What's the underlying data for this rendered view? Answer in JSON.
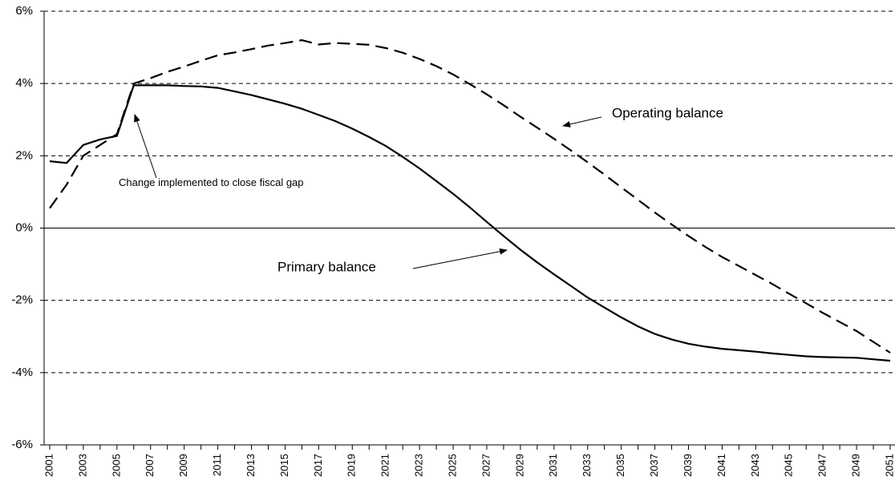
{
  "chart_data": {
    "type": "line",
    "categories": [
      "2001",
      null,
      "2003",
      null,
      "2005",
      null,
      "2007",
      null,
      "2009",
      null,
      "2011",
      null,
      "2013",
      null,
      "2015",
      null,
      "2017",
      null,
      "2019",
      null,
      "2021",
      null,
      "2023",
      null,
      "2025",
      null,
      "2027",
      null,
      "2029",
      null,
      "2031",
      null,
      "2033",
      null,
      "2035",
      null,
      "2037",
      null,
      "2039",
      null,
      "2041",
      null,
      "2043",
      null,
      "2045",
      null,
      "2047",
      null,
      "2049",
      null,
      "2051"
    ],
    "series": [
      {
        "name": "Primary balance",
        "color": "#000000",
        "style": "solid",
        "values": [
          1.85,
          1.8,
          2.3,
          2.45,
          2.55,
          3.95,
          3.95,
          3.95,
          3.93,
          3.92,
          3.88,
          3.78,
          3.68,
          3.56,
          3.44,
          3.3,
          3.13,
          2.96,
          2.75,
          2.52,
          2.27,
          1.97,
          1.65,
          1.3,
          0.95,
          0.57,
          0.17,
          -0.22,
          -0.6,
          -0.95,
          -1.28,
          -1.6,
          -1.92,
          -2.2,
          -2.47,
          -2.72,
          -2.93,
          -3.08,
          -3.2,
          -3.28,
          -3.34,
          -3.38,
          -3.42,
          -3.47,
          -3.51,
          -3.55,
          -3.57,
          -3.58,
          -3.59,
          -3.63,
          -3.67
        ]
      },
      {
        "name": "Operating balance",
        "color": "#000000",
        "style": "dashed",
        "values": [
          0.55,
          1.2,
          2.0,
          2.3,
          2.6,
          4.0,
          4.15,
          4.32,
          4.47,
          4.63,
          4.78,
          4.86,
          4.95,
          5.05,
          5.12,
          5.2,
          5.08,
          5.12,
          5.1,
          5.07,
          4.98,
          4.85,
          4.68,
          4.48,
          4.25,
          3.98,
          3.7,
          3.4,
          3.08,
          2.78,
          2.47,
          2.15,
          1.82,
          1.48,
          1.13,
          0.78,
          0.43,
          0.1,
          -0.22,
          -0.52,
          -0.8,
          -1.05,
          -1.3,
          -1.55,
          -1.82,
          -2.08,
          -2.35,
          -2.6,
          -2.85,
          -3.15,
          -3.45
        ]
      }
    ],
    "ylim": [
      -6,
      6
    ],
    "yticks": [
      {
        "value": -6,
        "label": "-6%"
      },
      {
        "value": -4,
        "label": "-4%"
      },
      {
        "value": -2,
        "label": "-2%"
      },
      {
        "value": 0,
        "label": "0%"
      },
      {
        "value": 2,
        "label": "2%"
      },
      {
        "value": 4,
        "label": "4%"
      },
      {
        "value": 6,
        "label": "6%"
      }
    ],
    "grid": true,
    "annotations": [
      "Change implemented to close fiscal gap"
    ]
  }
}
